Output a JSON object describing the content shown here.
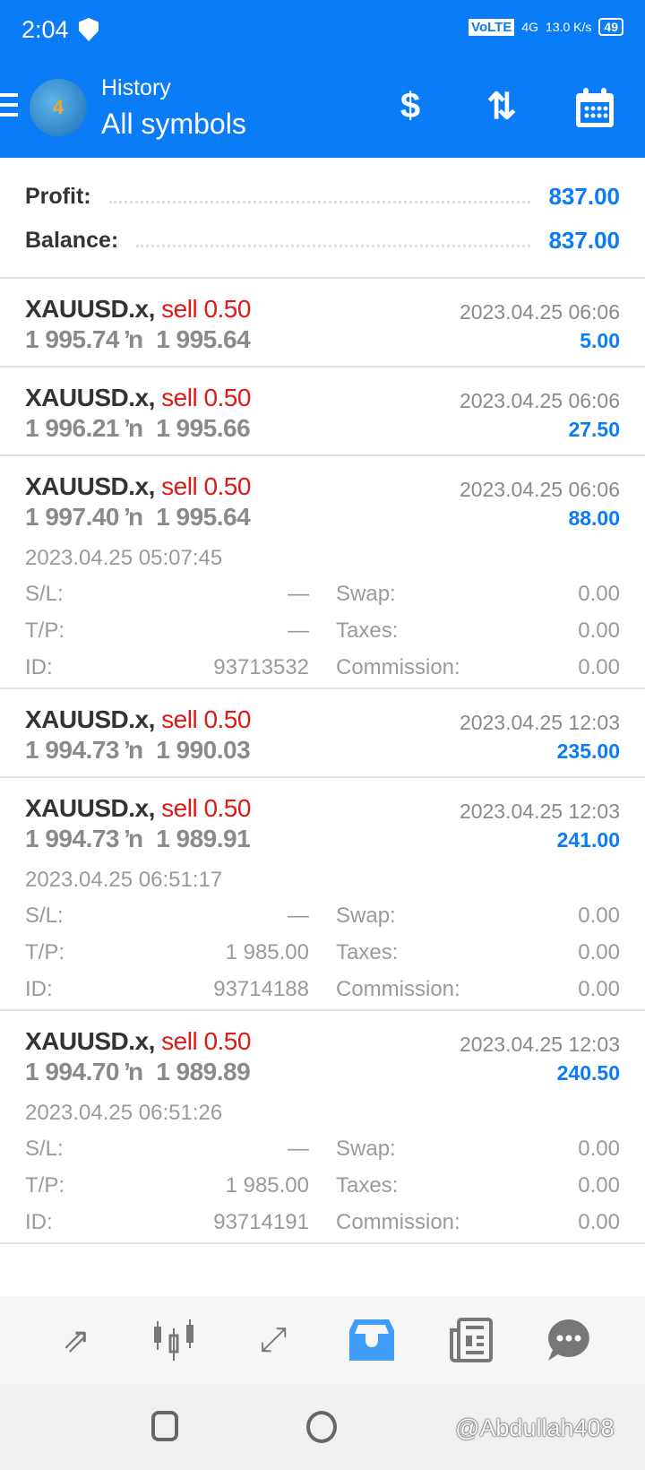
{
  "status_bar": {
    "time": "2:04",
    "network": "VoLTE",
    "signal": "4G",
    "speed": "13.0 K/s",
    "battery": "49"
  },
  "header": {
    "subtitle": "History",
    "title": "All symbols",
    "actions": [
      "deposit-icon",
      "sort-icon",
      "calendar-icon"
    ]
  },
  "summary": {
    "profit_label": "Profit:",
    "profit": "837.00",
    "balance_label": "Balance:",
    "balance": "837.00"
  },
  "arrow": "ŉ",
  "deals": [
    {
      "symbol": "XAUUSD.x,",
      "side": "sell 0.50",
      "open": "1 995.74",
      "close": "1 995.64",
      "time": "2023.04.25 06:06",
      "profit": "5.00"
    },
    {
      "symbol": "XAUUSD.x,",
      "side": "sell 0.50",
      "open": "1 996.21",
      "close": "1 995.66",
      "time": "2023.04.25 06:06",
      "profit": "27.50"
    },
    {
      "symbol": "XAUUSD.x,",
      "side": "sell 0.50",
      "open": "1 997.40",
      "close": "1 995.64",
      "time": "2023.04.25 06:06",
      "profit": "88.00",
      "open_time": "2023.04.25 05:07:45",
      "sl": "—",
      "tp": "—",
      "id": "93713532",
      "swap": "0.00",
      "taxes": "0.00",
      "commission": "0.00"
    },
    {
      "symbol": "XAUUSD.x,",
      "side": "sell 0.50",
      "open": "1 994.73",
      "close": "1 990.03",
      "time": "2023.04.25 12:03",
      "profit": "235.00"
    },
    {
      "symbol": "XAUUSD.x,",
      "side": "sell 0.50",
      "open": "1 994.73",
      "close": "1 989.91",
      "time": "2023.04.25 12:03",
      "profit": "241.00",
      "open_time": "2023.04.25 06:51:17",
      "sl": "—",
      "tp": "1 985.00",
      "id": "93714188",
      "swap": "0.00",
      "taxes": "0.00",
      "commission": "0.00"
    },
    {
      "symbol": "XAUUSD.x,",
      "side": "sell 0.50",
      "open": "1 994.70",
      "close": "1 989.89",
      "time": "2023.04.25 12:03",
      "profit": "240.50",
      "open_time": "2023.04.25 06:51:26",
      "sl": "—",
      "tp": "1 985.00",
      "id": "93714191",
      "swap": "0.00",
      "taxes": "0.00",
      "commission": "0.00"
    }
  ],
  "labels": {
    "sl": "S/L:",
    "tp": "T/P:",
    "id": "ID:",
    "swap": "Swap:",
    "taxes": "Taxes:",
    "commission": "Commission:"
  },
  "bottom_nav": [
    {
      "icon": "quotes-icon"
    },
    {
      "icon": "chart-icon"
    },
    {
      "icon": "trade-icon"
    },
    {
      "icon": "history-icon",
      "active": true
    },
    {
      "icon": "news-icon"
    },
    {
      "icon": "chat-icon"
    }
  ],
  "watermark": "@Abdullah408",
  "colors": {
    "accent": "#0a7cf8",
    "sell": "#e01818",
    "profit": "#0a7cf8"
  }
}
